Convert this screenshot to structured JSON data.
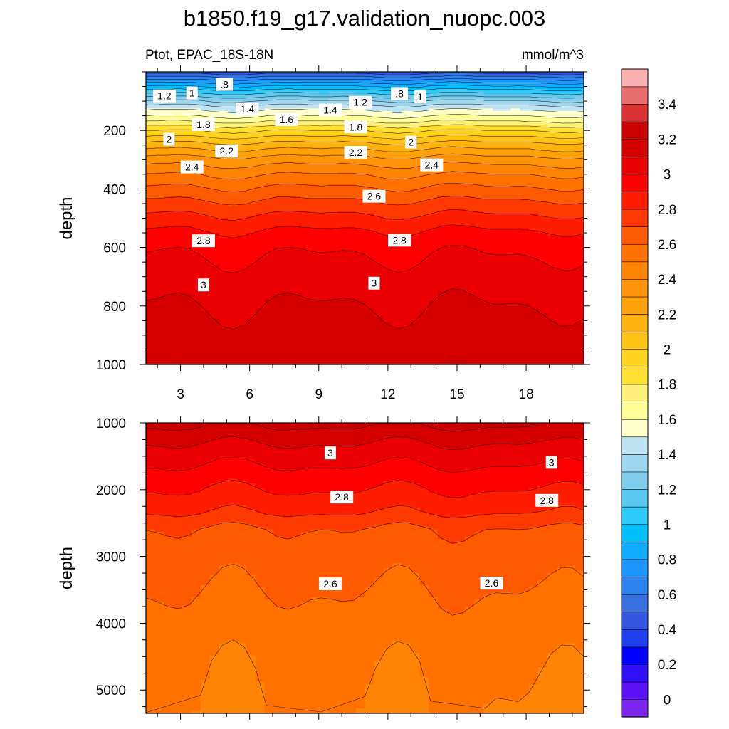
{
  "title": "b1850.f19_g17.validation_nuopc.003",
  "chart_data": [
    {
      "type": "heatmap",
      "variable": "Ptot",
      "region": "EPAC_18S-18N",
      "left_label": "Ptot, EPAC_18S-18N",
      "right_label": "mmol/m^3",
      "ylabel": "depth",
      "y_reversed": true,
      "xlim": [
        1.5,
        20.5
      ],
      "ylim": [
        0,
        1000
      ],
      "x_ticks": [
        3,
        6,
        9,
        12,
        15,
        18
      ],
      "y_ticks": [
        200,
        400,
        600,
        800,
        1000
      ],
      "contour_interval": 0.1,
      "profile": {
        "depth": [
          0,
          30,
          60,
          90,
          120,
          160,
          200,
          250,
          300,
          350,
          400,
          450,
          500,
          550,
          600,
          700,
          800,
          900,
          1000
        ],
        "value": [
          0.45,
          0.75,
          1.0,
          1.25,
          1.45,
          1.65,
          1.9,
          2.15,
          2.35,
          2.5,
          2.62,
          2.73,
          2.83,
          2.92,
          2.98,
          3.05,
          3.1,
          3.15,
          3.18
        ]
      },
      "contour_labels": [
        {
          "text": ".8",
          "x": 4.9,
          "y": 43
        },
        {
          "text": "1.2",
          "x": 2.3,
          "y": 82
        },
        {
          "text": "1",
          "x": 3.5,
          "y": 72
        },
        {
          "text": "1.4",
          "x": 5.9,
          "y": 126
        },
        {
          "text": "1.6",
          "x": 7.6,
          "y": 163
        },
        {
          "text": "1.4",
          "x": 9.5,
          "y": 130
        },
        {
          "text": "1.2",
          "x": 10.8,
          "y": 104
        },
        {
          "text": ".8",
          "x": 12.5,
          "y": 74
        },
        {
          "text": "1",
          "x": 13.4,
          "y": 85
        },
        {
          "text": "1.8",
          "x": 4.0,
          "y": 180
        },
        {
          "text": "1.8",
          "x": 10.6,
          "y": 188
        },
        {
          "text": "2",
          "x": 2.5,
          "y": 230
        },
        {
          "text": "2",
          "x": 13.0,
          "y": 240
        },
        {
          "text": "2.2",
          "x": 5.0,
          "y": 270
        },
        {
          "text": "2.2",
          "x": 10.6,
          "y": 275
        },
        {
          "text": "2.4",
          "x": 3.5,
          "y": 325
        },
        {
          "text": "2.4",
          "x": 13.9,
          "y": 318
        },
        {
          "text": "2.6",
          "x": 11.4,
          "y": 425
        },
        {
          "text": "2.8",
          "x": 4.0,
          "y": 577
        },
        {
          "text": "2.8",
          "x": 12.5,
          "y": 575
        },
        {
          "text": "3",
          "x": 4.0,
          "y": 728
        },
        {
          "text": "3",
          "x": 11.4,
          "y": 722
        }
      ]
    },
    {
      "type": "heatmap",
      "ylabel": "depth",
      "y_reversed": true,
      "xlim": [
        1.5,
        20.5
      ],
      "ylim": [
        1000,
        5350
      ],
      "x_ticks": [
        3,
        6,
        9,
        12,
        15,
        18
      ],
      "y_ticks": [
        1000,
        2000,
        3000,
        4000,
        5000
      ],
      "contour_interval": 0.1,
      "profile": {
        "depth": [
          1000,
          1300,
          1700,
          2000,
          2300,
          2600,
          3000,
          3500,
          4000,
          4500,
          5000,
          5350
        ],
        "value": [
          3.22,
          3.1,
          2.98,
          2.9,
          2.82,
          2.69,
          2.65,
          2.6,
          2.56,
          2.52,
          2.5,
          2.49
        ]
      },
      "contour_labels": [
        {
          "text": "3",
          "x": 9.5,
          "y": 1450
        },
        {
          "text": "3",
          "x": 19.1,
          "y": 1590
        },
        {
          "text": "2.8",
          "x": 10.0,
          "y": 2110
        },
        {
          "text": "2.8",
          "x": 18.9,
          "y": 2160
        },
        {
          "text": "2.6",
          "x": 9.5,
          "y": 3410
        },
        {
          "text": "2.6",
          "x": 16.5,
          "y": 3400
        }
      ]
    }
  ],
  "colorbar": {
    "labels": [
      "0",
      "0.2",
      "0.4",
      "0.6",
      "0.8",
      "1",
      "1.2",
      "1.4",
      "1.6",
      "1.8",
      "2",
      "2.2",
      "2.4",
      "2.6",
      "2.8",
      "3",
      "3.2",
      "3.4"
    ],
    "min": -0.1,
    "step": 0.1,
    "colors": [
      "#7b25ec",
      "#5c10f4",
      "#3210f7",
      "#0000ff",
      "#2040ee",
      "#3355e0",
      "#3a6fe0",
      "#2a83f0",
      "#1c96ff",
      "#10abff",
      "#00bfff",
      "#2ecbfa",
      "#5ac8f0",
      "#80ccec",
      "#9fd6ef",
      "#bde3f3",
      "#ffffcc",
      "#ffff99",
      "#fff07a",
      "#ffe030",
      "#ffd21e",
      "#ffc314",
      "#ffb30f",
      "#ffa20a",
      "#ff9408",
      "#ff8405",
      "#ff7200",
      "#ff5a00",
      "#ff3a00",
      "#ff1d00",
      "#ff0000",
      "#ea0000",
      "#d40000",
      "#cc0000",
      "#da3333",
      "#ea6d6d",
      "#f8b0b0"
    ]
  }
}
